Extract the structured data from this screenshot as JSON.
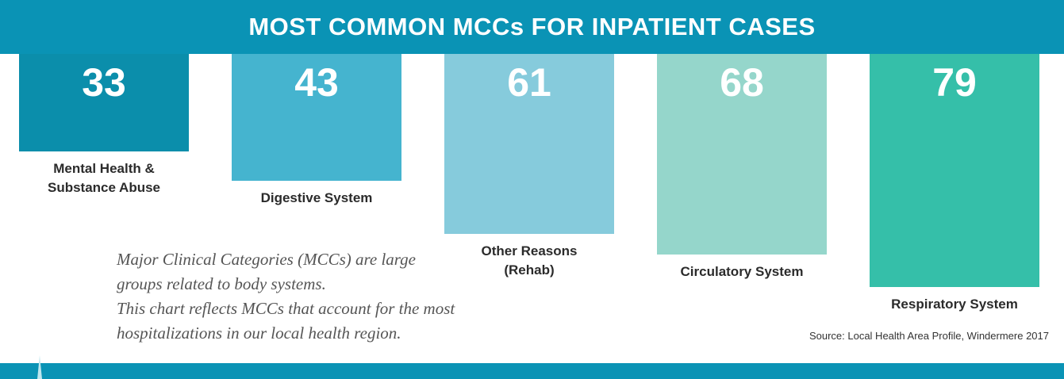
{
  "chart_data": {
    "type": "bar",
    "title": "MOST COMMON MCCs FOR INPATIENT CASES",
    "categories": [
      "Mental Health &\nSubstance Abuse",
      "Digestive System",
      "Other Reasons\n(Rehab)",
      "Circulatory System",
      "Respiratory System"
    ],
    "values": [
      33,
      43,
      61,
      68,
      79
    ],
    "colors": [
      "#0b8eab",
      "#45b4cf",
      "#86cbdc",
      "#95d6cb",
      "#35bfa9"
    ],
    "note_lines": [
      "Major Clinical Categories (MCCs) are large",
      "groups related to body systems.",
      "This chart reflects MCCs that account for the most",
      "hospitalizations in our local health region."
    ],
    "source": "Source: Local Health Area Profile, Windermere 2017"
  }
}
